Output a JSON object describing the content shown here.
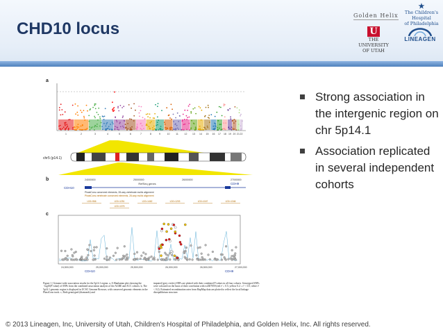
{
  "slide": {
    "title": "CHD10 locus",
    "bullets": [
      "Strong association in the intergenic region on chr 5p14.1",
      "Association replicated in several independent cohorts"
    ],
    "footer": "© 2013 Lineagen, Inc, University of Utah, Children's Hospital of Philadelphia, and Golden Helix, Inc. All rights reserved."
  },
  "logos": {
    "golden_helix": "Golden Helix",
    "chop_line1": "The Children's Hospital",
    "chop_line2": "of Philadelphia",
    "utah_line1": "THE",
    "utah_line2": "UNIVERSITY",
    "utah_line3": "OF UTAH",
    "utah_mark": "U",
    "lineagen": "LINEAGEN"
  },
  "figure": {
    "panel_a": "a",
    "panel_b": "b",
    "panel_c": "c",
    "chr_label": "chr5 (p14.1)",
    "refseq_label": "RefSeq genes",
    "gene_cdh9": "CDH9",
    "gene_cdh10": "CDH10",
    "phastcons1": "PhastCons conserved elements, 28-way vertebrate multiz alignment",
    "phastcons2": "PhastCons vertebrate conserved elements, 28-way multiz alignment",
    "ld_blocks": [
      "LD0=966",
      "LD0=1251",
      "LD0=1462",
      "LD0=1203",
      "LD0=1167",
      "LD0=1346",
      "LD0=1376"
    ],
    "b_ticks": [
      "24000000",
      "25000000",
      "26000000",
      "27000000"
    ],
    "c_ticks": [
      "24,500,000",
      "25,000,000",
      "25,500,000",
      "26,000,000",
      "26,500,000",
      "27,000,000"
    ],
    "caption_left": "Figure 1 | Genome-wide association results for the 5p14.1 region. a, A Manhattan plot showing the −log10(P value) of SNPs from the combined association analysis of the AGRE and ACC cohorts. b, The 5p14.1 genomic region is displayed in UCSC Genome Browser, with conserved genomic elements in the PhastCons track. c, Both genotyped (diamonds) and",
    "caption_right": "imputed (grey circles) SNPs are plotted with their combined P values in all four cohorts. Genotyped SNPs were coloured on the basis of their correlation with rs4307059 (red r² ≥ 0.5; yellow 0.2 ≤ r² < 0.5; white r² < 0.2). Estimated recombination rates from HapMap data are plotted to reflect the local linkage disequilibrium structure."
  },
  "colors": {
    "title": "#1f3864",
    "header_band": "#4f81bd",
    "highlight": "#f2e600",
    "utah_red": "#c8102e"
  }
}
